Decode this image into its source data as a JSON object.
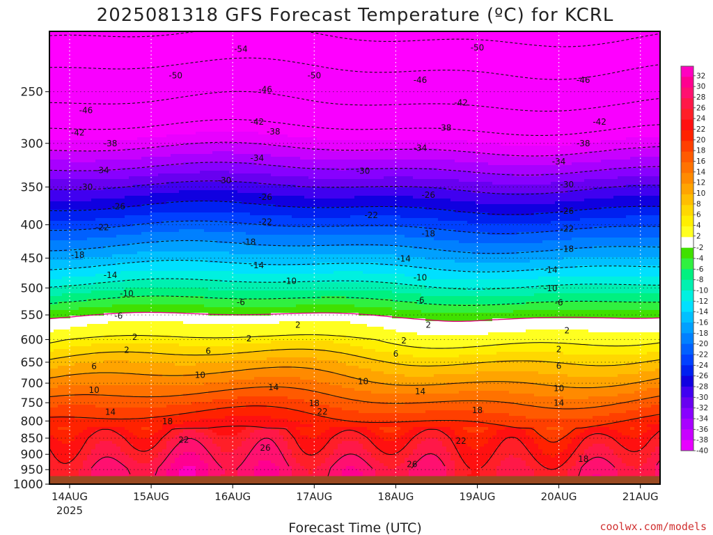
{
  "chart_data": {
    "type": "heatmap",
    "title": "2025081318 GFS Forecast Temperature (ºC) for KCRL",
    "xlabel": "Forecast Time (UTC)",
    "ylabel": "",
    "x_ticks": [
      "14AUG",
      "15AUG",
      "16AUG",
      "17AUG",
      "18AUG",
      "19AUG",
      "20AUG",
      "21AUG"
    ],
    "x_year_label": "2025",
    "y_ticks": [
      "250",
      "300",
      "350",
      "400",
      "450",
      "500",
      "550",
      "600",
      "650",
      "700",
      "750",
      "800",
      "850",
      "900",
      "950",
      "1000"
    ],
    "y_range_hPa": [
      200,
      1000
    ],
    "y_scale": "pressure (log, inverted)",
    "surface_pressure_hPa": 972,
    "colorbar": {
      "labels": [
        "32",
        "30",
        "28",
        "26",
        "24",
        "22",
        "20",
        "18",
        "16",
        "14",
        "12",
        "10",
        "8",
        "6",
        "4",
        "2",
        "-2",
        "-4",
        "-6",
        "-8",
        "-10",
        "-12",
        "-14",
        "-16",
        "-18",
        "-20",
        "-22",
        "-24",
        "-26",
        "-28",
        "-30",
        "-32",
        "-34",
        "-36",
        "-38",
        "-40"
      ],
      "range": [
        -40,
        32
      ]
    },
    "contour_levels": [
      -54,
      -50,
      -46,
      -42,
      -38,
      -34,
      -30,
      -26,
      -22,
      -18,
      -14,
      -10,
      -6,
      2,
      -2,
      6,
      10,
      14,
      18,
      22,
      26
    ],
    "temperature_profile": {
      "pressure_hPa": [
        200,
        230,
        260,
        290,
        320,
        350,
        380,
        410,
        440,
        470,
        500,
        530,
        560,
        590,
        620,
        650,
        700,
        750,
        800,
        850,
        900,
        950
      ],
      "temp_C": [
        -55,
        -50,
        -46,
        -41,
        -35.5,
        -30,
        -25.5,
        -21,
        -17,
        -13,
        -9,
        -5,
        -1,
        1,
        4,
        7,
        11,
        15,
        18.5,
        22,
        24,
        26
      ]
    },
    "contour_labels": [
      {
        "text": "-54",
        "day": 2.1,
        "p": 215
      },
      {
        "text": "-50",
        "day": 5.0,
        "p": 214
      },
      {
        "text": "-50",
        "day": 1.3,
        "p": 236
      },
      {
        "text": "-50",
        "day": 3.0,
        "p": 236
      },
      {
        "text": "-46",
        "day": 2.4,
        "p": 248
      },
      {
        "text": "-46",
        "day": 4.3,
        "p": 240
      },
      {
        "text": "-46",
        "day": 6.3,
        "p": 240
      },
      {
        "text": "-46",
        "day": 0.2,
        "p": 267
      },
      {
        "text": "-42",
        "day": 2.3,
        "p": 278
      },
      {
        "text": "-42",
        "day": 4.8,
        "p": 260
      },
      {
        "text": "-42",
        "day": 6.5,
        "p": 278
      },
      {
        "text": "-42",
        "day": 0.1,
        "p": 289
      },
      {
        "text": "-38",
        "day": 0.5,
        "p": 300
      },
      {
        "text": "-38",
        "day": 2.5,
        "p": 288
      },
      {
        "text": "-38",
        "day": 4.6,
        "p": 284
      },
      {
        "text": "-38",
        "day": 6.3,
        "p": 300
      },
      {
        "text": "-34",
        "day": 0.4,
        "p": 330
      },
      {
        "text": "-34",
        "day": 2.3,
        "p": 316
      },
      {
        "text": "-34",
        "day": 4.3,
        "p": 305
      },
      {
        "text": "-34",
        "day": 6.0,
        "p": 320
      },
      {
        "text": "-30",
        "day": 0.2,
        "p": 350
      },
      {
        "text": "-30",
        "day": 1.9,
        "p": 342
      },
      {
        "text": "-30",
        "day": 3.6,
        "p": 331
      },
      {
        "text": "-30",
        "day": 6.1,
        "p": 347
      },
      {
        "text": "-26",
        "day": 0.6,
        "p": 375
      },
      {
        "text": "-26",
        "day": 2.4,
        "p": 363
      },
      {
        "text": "-26",
        "day": 4.4,
        "p": 360
      },
      {
        "text": "-26",
        "day": 6.1,
        "p": 381
      },
      {
        "text": "-22",
        "day": 0.4,
        "p": 404
      },
      {
        "text": "-22",
        "day": 2.4,
        "p": 396
      },
      {
        "text": "-22",
        "day": 3.7,
        "p": 387
      },
      {
        "text": "-22",
        "day": 6.1,
        "p": 406
      },
      {
        "text": "-18",
        "day": 0.1,
        "p": 445
      },
      {
        "text": "-18",
        "day": 2.2,
        "p": 425
      },
      {
        "text": "-18",
        "day": 4.4,
        "p": 413
      },
      {
        "text": "-18",
        "day": 6.1,
        "p": 436
      },
      {
        "text": "-14",
        "day": 0.5,
        "p": 478
      },
      {
        "text": "-14",
        "day": 2.3,
        "p": 462
      },
      {
        "text": "-14",
        "day": 4.1,
        "p": 451
      },
      {
        "text": "-14",
        "day": 5.9,
        "p": 469
      },
      {
        "text": "-10",
        "day": 0.7,
        "p": 510
      },
      {
        "text": "-10",
        "day": 2.7,
        "p": 488
      },
      {
        "text": "-10",
        "day": 4.3,
        "p": 482
      },
      {
        "text": "-10",
        "day": 5.9,
        "p": 501
      },
      {
        "text": "-6",
        "day": 0.6,
        "p": 552
      },
      {
        "text": "-6",
        "day": 2.1,
        "p": 526
      },
      {
        "text": "-6",
        "day": 4.3,
        "p": 522
      },
      {
        "text": "-6",
        "day": 6.0,
        "p": 527
      },
      {
        "text": "2",
        "day": 0.8,
        "p": 595
      },
      {
        "text": "2",
        "day": 2.8,
        "p": 570
      },
      {
        "text": "2",
        "day": 4.4,
        "p": 570
      },
      {
        "text": "2",
        "day": 6.1,
        "p": 581
      },
      {
        "text": "2",
        "day": 0.7,
        "p": 623
      },
      {
        "text": "2",
        "day": 2.2,
        "p": 598
      },
      {
        "text": "2",
        "day": 4.1,
        "p": 602
      },
      {
        "text": "2",
        "day": 6.0,
        "p": 621
      },
      {
        "text": "6",
        "day": 0.3,
        "p": 660
      },
      {
        "text": "6",
        "day": 1.7,
        "p": 625
      },
      {
        "text": "6",
        "day": 4.0,
        "p": 631
      },
      {
        "text": "6",
        "day": 6.0,
        "p": 659
      },
      {
        "text": "10",
        "day": 0.3,
        "p": 717
      },
      {
        "text": "10",
        "day": 1.6,
        "p": 680
      },
      {
        "text": "10",
        "day": 3.6,
        "p": 696
      },
      {
        "text": "10",
        "day": 6.0,
        "p": 713
      },
      {
        "text": "14",
        "day": 0.5,
        "p": 775
      },
      {
        "text": "14",
        "day": 2.5,
        "p": 710
      },
      {
        "text": "14",
        "day": 4.3,
        "p": 721
      },
      {
        "text": "14",
        "day": 6.0,
        "p": 751
      },
      {
        "text": "18",
        "day": 1.2,
        "p": 801
      },
      {
        "text": "18",
        "day": 3.0,
        "p": 752
      },
      {
        "text": "18",
        "day": 5.0,
        "p": 770
      },
      {
        "text": "18",
        "day": 6.3,
        "p": 915
      },
      {
        "text": "22",
        "day": 1.4,
        "p": 855
      },
      {
        "text": "22",
        "day": 3.1,
        "p": 774
      },
      {
        "text": "22",
        "day": 4.8,
        "p": 858
      },
      {
        "text": "26",
        "day": 2.4,
        "p": 880
      },
      {
        "text": "26",
        "day": 4.2,
        "p": 932
      }
    ]
  },
  "credit": "coolwx.com/models",
  "colors": {
    "frame": "#000000",
    "ground": "#9a4a22",
    "minus2_contour": "#e0007f",
    "grid": "#ffffff",
    "grid_dots": "#111111"
  }
}
